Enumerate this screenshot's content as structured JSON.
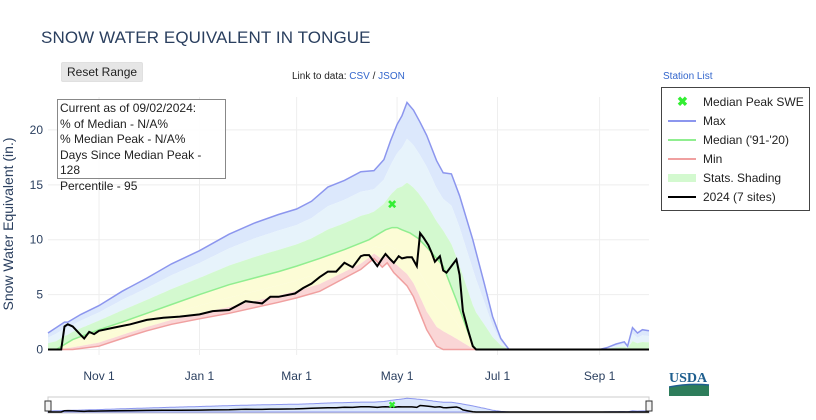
{
  "header": {
    "title": "SNOW WATER EQUIVALENT IN TONGUE",
    "reset_label": "Reset Range",
    "link_prefix": "Link to data:",
    "csv_label": "CSV",
    "separator": "/",
    "json_label": "JSON",
    "station_list_label": "Station List"
  },
  "info_box": {
    "line1": "Current as of 09/02/2024:",
    "line2": "% of Median - N/A%",
    "line3": "% Median Peak - N/A%",
    "line4": "Days Since Median Peak - 128",
    "line5": "Percentile - 95"
  },
  "logo_text": "USDA",
  "colors": {
    "max": "#8c96ee",
    "median": "#90ee90",
    "min": "#f0a0a0",
    "current": "#000000",
    "median_peak": "#33ee33",
    "band_outer": "#dce8fc",
    "band_mid": "#e7f3fb",
    "band_green": "#d3f9cf",
    "band_yellow": "#fcfcd6",
    "band_red": "#fad6d6"
  },
  "chart_data": {
    "type": "area",
    "title": "SNOW WATER EQUIVALENT IN TONGUE",
    "xlabel": "",
    "ylabel": "Snow Water Equivalent (in.)",
    "x_ticks": [
      "Nov  1",
      "Jan  1",
      "Mar  1",
      "May  1",
      "Jul  1",
      "Sep  1"
    ],
    "x_tick_days": [
      31,
      92,
      151,
      212,
      273,
      335
    ],
    "y_ticks": [
      0,
      5,
      10,
      15,
      20
    ],
    "xlim": [
      0,
      365
    ],
    "ylim": [
      -0.5,
      23
    ],
    "grid": true,
    "legend_position": "top-right outside",
    "median_peak": {
      "x": 209,
      "y": 13.3
    },
    "series": [
      {
        "name": "Max",
        "x": [
          0,
          5,
          10,
          12,
          20,
          31,
          45,
          60,
          75,
          92,
          110,
          125,
          140,
          151,
          160,
          170,
          180,
          190,
          198,
          204,
          208,
          212,
          215,
          218,
          222,
          226,
          230,
          236,
          240,
          245,
          250,
          258,
          265,
          270,
          275,
          280,
          290,
          300,
          320,
          335,
          340,
          345,
          350,
          352,
          355,
          358,
          361,
          365
        ],
        "values": [
          1.5,
          2.0,
          2.5,
          2.5,
          3.2,
          4.0,
          5.3,
          6.5,
          7.8,
          9.0,
          10.5,
          11.5,
          12.3,
          12.8,
          13.5,
          14.8,
          15.4,
          16.2,
          16.3,
          17.3,
          19.0,
          20.5,
          21.3,
          22.5,
          21.8,
          20.7,
          19.5,
          17.2,
          16.1,
          16.0,
          14.0,
          10.0,
          6.0,
          3.0,
          1.0,
          0,
          0,
          0,
          0,
          0,
          0.2,
          0.5,
          0.7,
          0.3,
          2.0,
          1.5,
          1.8,
          1.7
        ]
      },
      {
        "name": "Median ('91-'20)",
        "x": [
          0,
          5,
          15,
          31,
          45,
          60,
          75,
          92,
          110,
          125,
          140,
          151,
          165,
          180,
          195,
          205,
          209,
          212,
          215,
          220,
          225,
          232,
          240,
          248,
          255,
          258,
          260,
          365
        ],
        "values": [
          0,
          0,
          0.9,
          1.8,
          2.5,
          3.3,
          4.1,
          5.0,
          5.9,
          6.5,
          7.1,
          7.6,
          8.3,
          9.1,
          10.0,
          10.9,
          11.1,
          11.1,
          10.9,
          10.6,
          10.1,
          9.0,
          7.6,
          4.5,
          1.6,
          0.4,
          0,
          0
        ]
      },
      {
        "name": "Min",
        "x": [
          0,
          15,
          31,
          45,
          60,
          75,
          92,
          110,
          125,
          140,
          151,
          165,
          180,
          190,
          198,
          203,
          206,
          210,
          214,
          218,
          222,
          226,
          230,
          236,
          240,
          365
        ],
        "values": [
          0,
          0,
          0.3,
          1.0,
          1.7,
          2.3,
          2.8,
          3.3,
          3.8,
          4.3,
          4.7,
          5.3,
          6.5,
          7.3,
          8.3,
          7.5,
          7.9,
          7.0,
          6.4,
          5.8,
          4.8,
          3.3,
          1.8,
          0.3,
          0,
          0
        ]
      },
      {
        "name": "2024 (7 sites)",
        "x": [
          0,
          8,
          10,
          12,
          15,
          20,
          22,
          25,
          28,
          31,
          40,
          50,
          60,
          70,
          80,
          92,
          100,
          110,
          120,
          130,
          135,
          140,
          150,
          155,
          160,
          165,
          170,
          175,
          180,
          185,
          190,
          192,
          195,
          198,
          200,
          203,
          205,
          208,
          210,
          213,
          215,
          218,
          221,
          224,
          226,
          228,
          231,
          233,
          235,
          238,
          240,
          242,
          245,
          248,
          250,
          252,
          255,
          258,
          260,
          365
        ],
        "values": [
          0,
          0,
          2.1,
          2.3,
          2.1,
          1.3,
          1.0,
          1.6,
          1.4,
          1.7,
          2.0,
          2.3,
          2.7,
          2.9,
          3.0,
          3.2,
          3.5,
          3.6,
          4.4,
          4.2,
          4.8,
          4.8,
          5.1,
          5.6,
          6.0,
          6.6,
          7.1,
          7.1,
          7.9,
          7.5,
          8.5,
          8.6,
          8.6,
          8.0,
          7.6,
          8.3,
          8.7,
          8.2,
          7.9,
          8.5,
          8.3,
          8.4,
          8.4,
          7.6,
          10.6,
          10.2,
          9.5,
          8.8,
          8.0,
          8.5,
          7.2,
          7.0,
          7.6,
          8.2,
          6.8,
          3.5,
          1.8,
          0.3,
          0,
          0
        ]
      }
    ]
  }
}
